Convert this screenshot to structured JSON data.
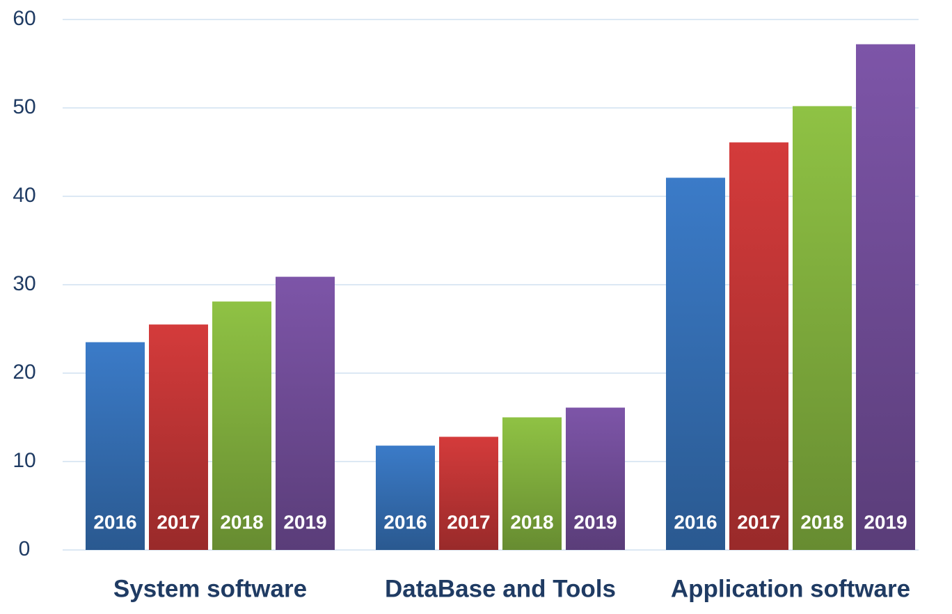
{
  "chart_data": {
    "type": "bar",
    "categories": [
      "System software",
      "DataBase and Tools",
      "Application software"
    ],
    "series": [
      {
        "name": "2016",
        "color": "#3b7bc8",
        "values": [
          23.5,
          11.8,
          42.1
        ]
      },
      {
        "name": "2017",
        "color": "#d43b3b",
        "values": [
          25.5,
          12.8,
          46.1
        ]
      },
      {
        "name": "2018",
        "color": "#8fc244",
        "values": [
          28.1,
          15.0,
          50.2
        ]
      },
      {
        "name": "2019",
        "color": "#7d55a8",
        "values": [
          30.9,
          16.1,
          57.2
        ]
      }
    ],
    "ylim": [
      0,
      60
    ],
    "yticks": [
      0,
      10,
      20,
      30,
      40,
      50,
      60
    ],
    "grid": true
  }
}
